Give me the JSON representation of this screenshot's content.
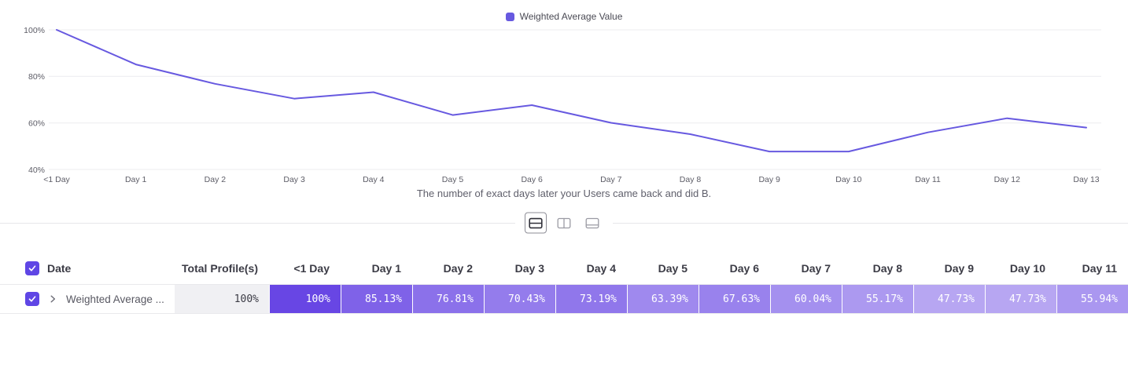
{
  "chart_data": {
    "type": "line",
    "x": [
      "<1 Day",
      "Day 1",
      "Day 2",
      "Day 3",
      "Day 4",
      "Day 5",
      "Day 6",
      "Day 7",
      "Day 8",
      "Day 9",
      "Day 10",
      "Day 11",
      "Day 12",
      "Day 13"
    ],
    "series": [
      {
        "name": "Weighted Average Value",
        "values": [
          100,
          85.13,
          76.81,
          70.43,
          73.19,
          63.39,
          67.63,
          60.04,
          55.17,
          47.73,
          47.73,
          55.94,
          62,
          58
        ]
      }
    ],
    "title": "",
    "xlabel": "",
    "ylabel": "",
    "ylim": [
      40,
      100
    ],
    "yticks": [
      "100%",
      "80%",
      "60%",
      "40%"
    ],
    "grid": true,
    "legend_position": "top",
    "caption": "The number of exact days later your Users came back and did B."
  },
  "toolbar": {
    "views": [
      "split-horizontal",
      "split-vertical",
      "bottom-panel"
    ],
    "active": 0
  },
  "table": {
    "date_header": "Date",
    "columns": [
      "Total Profile(s)",
      "<1 Day",
      "Day 1",
      "Day 2",
      "Day 3",
      "Day 4",
      "Day 5",
      "Day 6",
      "Day 7",
      "Day 8",
      "Day 9",
      "Day 10",
      "Day 11"
    ],
    "row": {
      "label": "Weighted Average ...",
      "total": "100%",
      "values": [
        "100%",
        "85.13%",
        "76.81%",
        "70.43%",
        "73.19%",
        "63.39%",
        "67.63%",
        "60.04%",
        "55.17%",
        "47.73%",
        "47.73%",
        "55.94%"
      ],
      "numeric": [
        100,
        85.13,
        76.81,
        70.43,
        73.19,
        63.39,
        67.63,
        60.04,
        55.17,
        47.73,
        47.73,
        55.94
      ]
    }
  },
  "colors": {
    "accent": "#5f46e5",
    "line": "#6759e0",
    "cell_rgb": [
      104,
      70,
      228
    ],
    "grid": "#ececef"
  }
}
